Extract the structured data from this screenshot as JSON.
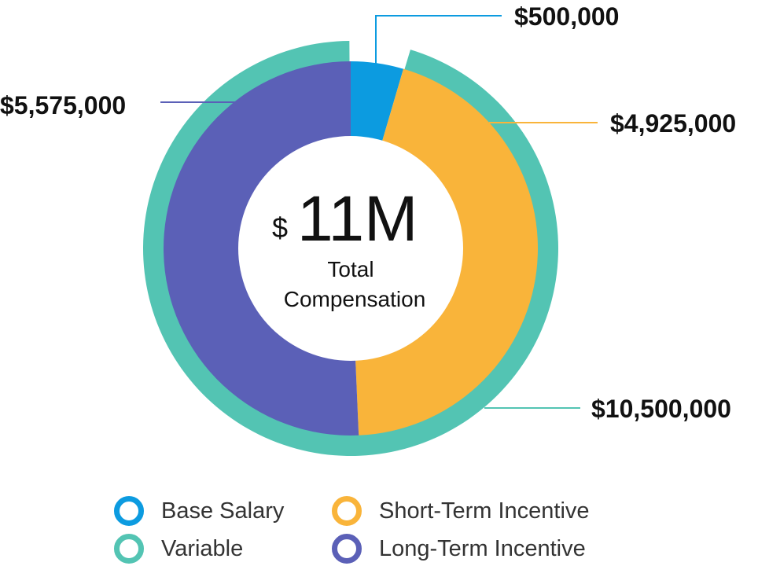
{
  "chart_data": {
    "type": "donut",
    "center": {
      "currency": "$",
      "value": "11M",
      "line1": "Total",
      "line2": "Compensation"
    },
    "inner_ring": [
      {
        "name": "Base Salary",
        "value": 500000,
        "label": "$500,000",
        "color": "#0C9BE0"
      },
      {
        "name": "Short-Term Incentive",
        "value": 4925000,
        "label": "$4,925,000",
        "color": "#F9B43A"
      },
      {
        "name": "Long-Term Incentive",
        "value": 5575000,
        "label": "$5,575,000",
        "color": "#5B60B7"
      }
    ],
    "outer_ring": [
      {
        "name": "Base Salary",
        "value": 500000,
        "color": "#ffffff"
      },
      {
        "name": "Variable",
        "value": 10500000,
        "label": "$10,500,000",
        "color": "#53C4B3"
      }
    ],
    "total": 11000000
  },
  "legend": [
    {
      "label": "Base Salary",
      "color": "#0C9BE0"
    },
    {
      "label": "Short-Term Incentive",
      "color": "#F9B43A"
    },
    {
      "label": "Variable",
      "color": "#53C4B3"
    },
    {
      "label": "Long-Term Incentive",
      "color": "#5B60B7"
    }
  ]
}
